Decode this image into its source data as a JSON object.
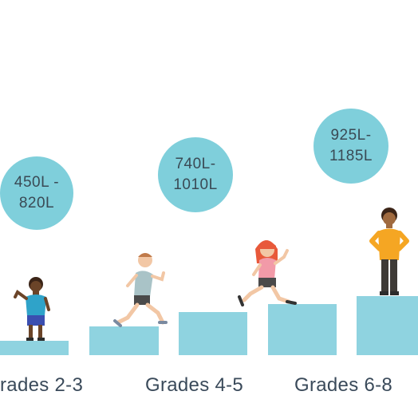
{
  "colors": {
    "bubble": "#7fcfdb",
    "step": "#8fd3e0",
    "step_shade": "#7cc8d6",
    "text": "#3a4a5a"
  },
  "bubbles": [
    {
      "line1": "450L -",
      "line2": "820L"
    },
    {
      "line1": "740L-",
      "line2": "1010L"
    },
    {
      "line1": "925L-",
      "line2": "1185L"
    }
  ],
  "grades": [
    {
      "label": "rades 2-3"
    },
    {
      "label": "Grades 4-5"
    },
    {
      "label": "Grades 6-8"
    }
  ],
  "figures": [
    "child-standing-icon",
    "child-running-icon",
    "girl-running-icon",
    "child-hands-on-hips-icon"
  ]
}
